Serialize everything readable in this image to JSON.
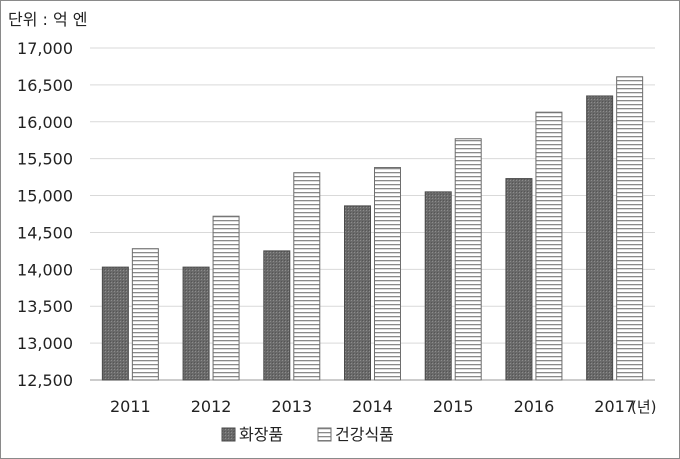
{
  "unit_label": "단위 : 억 엔",
  "year_suffix": "(년)",
  "chart_data": {
    "type": "bar",
    "categories": [
      "2011",
      "2012",
      "2013",
      "2014",
      "2015",
      "2016",
      "2017"
    ],
    "series": [
      {
        "name": "화장품",
        "values": [
          14030,
          14030,
          14250,
          14860,
          15050,
          15230,
          16350
        ],
        "color": "#6e6e6e",
        "pattern": "dotted-dark"
      },
      {
        "name": "건강식품",
        "values": [
          14280,
          14720,
          15310,
          15380,
          15770,
          16130,
          16610
        ],
        "color": "#ffffff",
        "pattern": "horizontal-stripes"
      }
    ],
    "ylim": [
      12500,
      17000
    ],
    "yticks": [
      12500,
      13000,
      13500,
      14000,
      14500,
      15000,
      15500,
      16000,
      16500,
      17000
    ],
    "ytick_labels": [
      "12,500",
      "13,000",
      "13,500",
      "14,000",
      "14,500",
      "15,000",
      "15,500",
      "16,000",
      "16,500",
      "17,000"
    ],
    "grid": true,
    "legend_position": "bottom-center",
    "title": "",
    "xlabel": "",
    "ylabel": ""
  }
}
